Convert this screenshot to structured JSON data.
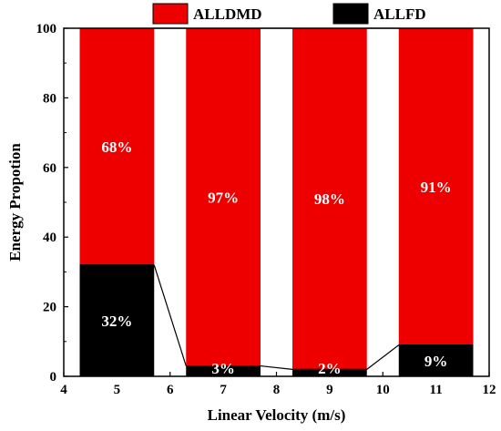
{
  "chart_data": {
    "type": "bar",
    "stacked": true,
    "x": [
      5,
      7,
      9,
      11
    ],
    "series": [
      {
        "name": "ALLFD",
        "values": [
          32,
          3,
          2,
          9
        ],
        "labels": [
          "32%",
          "3%",
          "2%",
          "9%"
        ],
        "color": "#000000"
      },
      {
        "name": "ALLDMD",
        "values": [
          68,
          97,
          98,
          91
        ],
        "labels": [
          "68%",
          "97%",
          "98%",
          "91%"
        ],
        "color": "#ee0000"
      }
    ],
    "xlabel": "Linear Velocity (m/s)",
    "ylabel": "Energy Propotion",
    "xlim": [
      4,
      12
    ],
    "ylim": [
      0,
      100
    ],
    "xticks": [
      "4",
      "5",
      "6",
      "7",
      "8",
      "9",
      "10",
      "11",
      "12"
    ],
    "yticks": [
      "0",
      "20",
      "40",
      "60",
      "80",
      "100"
    ],
    "legend_position": "top",
    "grid": false,
    "connector_lines": true
  }
}
